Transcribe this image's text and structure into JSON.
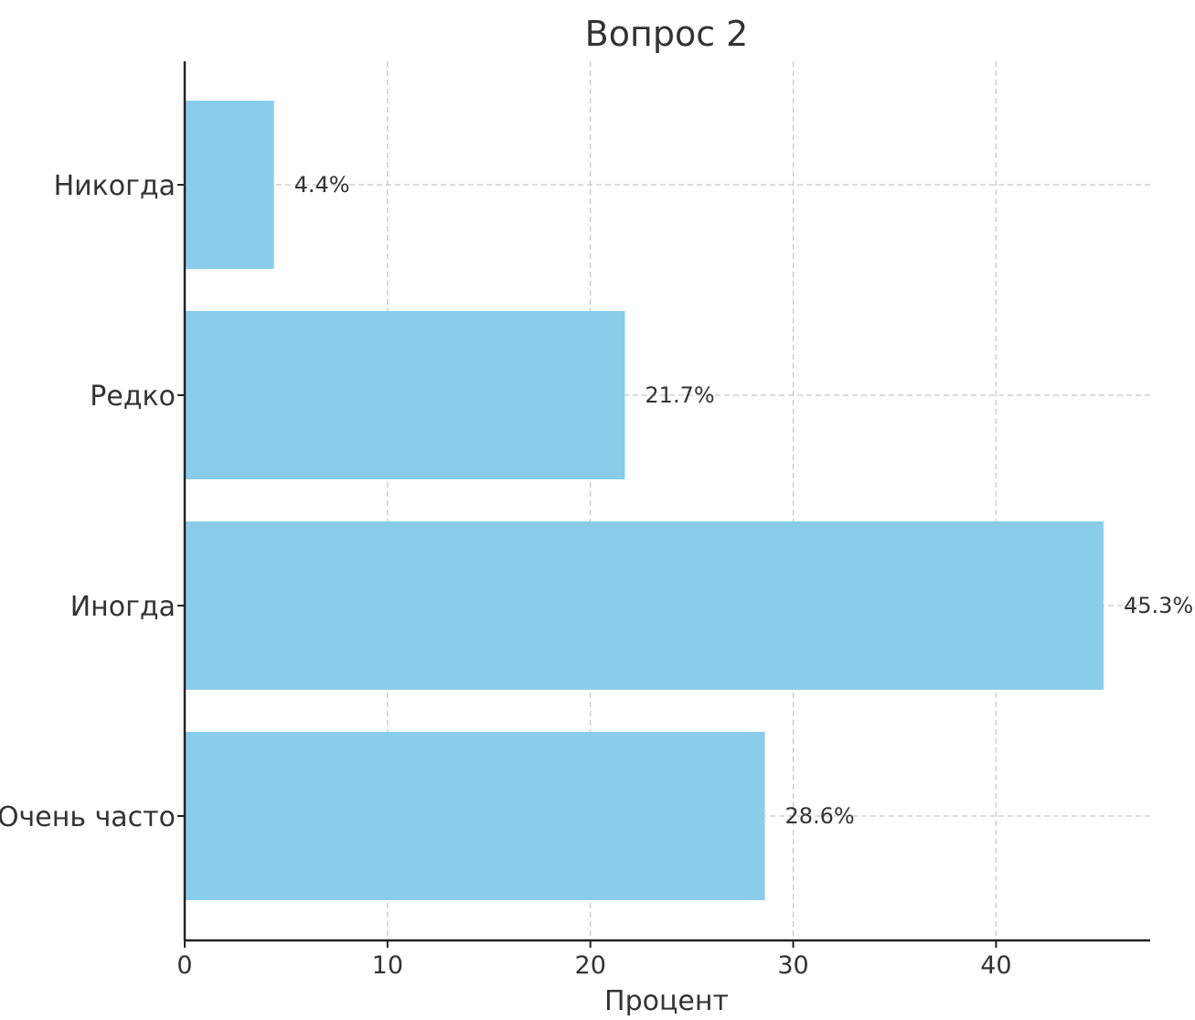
{
  "chart_data": {
    "type": "bar",
    "orientation": "horizontal",
    "title": "Вопрос 2",
    "xlabel": "Процент",
    "ylabel": "",
    "categories": [
      "Никогда",
      "Редко",
      "Иногда",
      "Очень часто"
    ],
    "values": [
      4.4,
      21.7,
      45.3,
      28.6
    ],
    "data_labels": [
      "4.4%",
      "21.7%",
      "45.3%",
      "28.6%"
    ],
    "x_ticks": [
      0,
      10,
      20,
      30,
      40
    ],
    "xlim": [
      0,
      47.6
    ],
    "grid": true,
    "bar_color": "#89cdea"
  }
}
